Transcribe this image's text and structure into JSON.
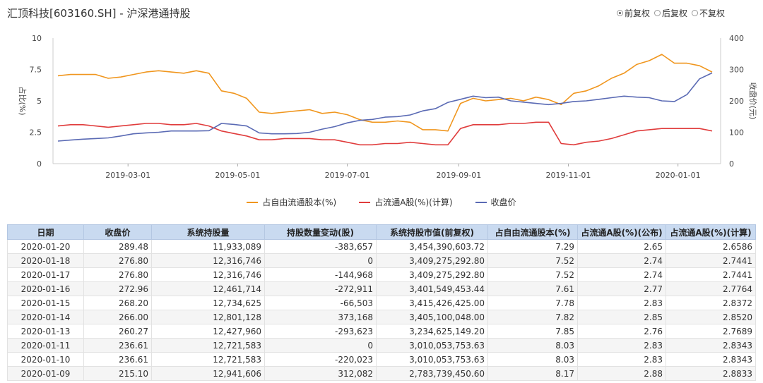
{
  "page": {
    "title": "汇顶科技[603160.SH] - 沪深港通持股"
  },
  "adjust_options": [
    {
      "label": "前复权",
      "selected": true
    },
    {
      "label": "后复权",
      "selected": false
    },
    {
      "label": "不复权",
      "selected": false
    }
  ],
  "chart_data": {
    "type": "line",
    "x_ticks": [
      "2019-03-01",
      "2019-05-01",
      "2019-07-01",
      "2019-09-01",
      "2019-11-01",
      "2020-01-01"
    ],
    "x": [
      "2019-01-21",
      "2019-01-28",
      "2019-02-04",
      "2019-02-11",
      "2019-02-18",
      "2019-02-25",
      "2019-03-04",
      "2019-03-11",
      "2019-03-18",
      "2019-03-25",
      "2019-04-01",
      "2019-04-08",
      "2019-04-15",
      "2019-04-22",
      "2019-04-29",
      "2019-05-06",
      "2019-05-13",
      "2019-05-20",
      "2019-05-27",
      "2019-06-03",
      "2019-06-10",
      "2019-06-17",
      "2019-06-24",
      "2019-07-01",
      "2019-07-08",
      "2019-07-15",
      "2019-07-22",
      "2019-07-29",
      "2019-08-05",
      "2019-08-12",
      "2019-08-19",
      "2019-08-26",
      "2019-09-02",
      "2019-09-09",
      "2019-09-16",
      "2019-09-23",
      "2019-09-30",
      "2019-10-07",
      "2019-10-14",
      "2019-10-21",
      "2019-10-28",
      "2019-11-04",
      "2019-11-11",
      "2019-11-18",
      "2019-11-25",
      "2019-12-02",
      "2019-12-09",
      "2019-12-16",
      "2019-12-23",
      "2019-12-30",
      "2020-01-06",
      "2020-01-13",
      "2020-01-20"
    ],
    "y_left": {
      "label": "占比(%)",
      "ticks": [
        0,
        2.5,
        5,
        7.5,
        10
      ],
      "range": [
        0,
        10
      ]
    },
    "y_right": {
      "label": "收盘价(元)",
      "ticks": [
        0,
        100,
        200,
        300,
        400
      ],
      "range": [
        0,
        400
      ]
    },
    "series": [
      {
        "name": "占自由流通股本(%)",
        "color": "#f0961e",
        "axis": "left",
        "values": [
          7.0,
          7.1,
          7.1,
          7.1,
          6.8,
          6.9,
          7.1,
          7.3,
          7.4,
          7.3,
          7.2,
          7.4,
          7.2,
          5.8,
          5.6,
          5.2,
          4.1,
          4.0,
          4.1,
          4.2,
          4.3,
          4.0,
          4.1,
          3.9,
          3.5,
          3.3,
          3.3,
          3.4,
          3.3,
          2.7,
          2.7,
          2.6,
          4.8,
          5.2,
          5.0,
          5.1,
          5.2,
          5.0,
          5.3,
          5.1,
          4.7,
          5.6,
          5.8,
          6.2,
          6.8,
          7.2,
          7.9,
          8.2,
          8.7,
          8.0,
          8.0,
          7.8,
          7.3
        ]
      },
      {
        "name": "占流通A股(%)(计算)",
        "color": "#e03c3c",
        "axis": "left",
        "values": [
          3.0,
          3.1,
          3.1,
          3.0,
          2.9,
          3.0,
          3.1,
          3.2,
          3.2,
          3.1,
          3.1,
          3.2,
          3.0,
          2.6,
          2.4,
          2.2,
          1.9,
          1.9,
          2.0,
          2.0,
          2.0,
          1.9,
          1.9,
          1.7,
          1.5,
          1.5,
          1.6,
          1.6,
          1.7,
          1.6,
          1.5,
          1.5,
          2.8,
          3.1,
          3.1,
          3.1,
          3.2,
          3.2,
          3.3,
          3.3,
          1.6,
          1.5,
          1.7,
          1.8,
          2.0,
          2.3,
          2.6,
          2.7,
          2.8,
          2.8,
          2.8,
          2.8,
          2.6
        ]
      },
      {
        "name": "收盘价",
        "color": "#5a6ab4",
        "axis": "right",
        "values": [
          72,
          75,
          78,
          80,
          82,
          88,
          95,
          98,
          100,
          104,
          104,
          104,
          105,
          128,
          125,
          120,
          98,
          95,
          95,
          96,
          100,
          110,
          118,
          130,
          138,
          141,
          148,
          150,
          155,
          168,
          175,
          195,
          205,
          215,
          210,
          212,
          200,
          196,
          192,
          188,
          192,
          198,
          200,
          205,
          210,
          215,
          212,
          210,
          200,
          198,
          220,
          270,
          289
        ]
      }
    ]
  },
  "table": {
    "headers": [
      "日期",
      "收盘价",
      "系统持股量",
      "持股数量变动(股)",
      "系统持股市值(前复权)",
      "占自由流通股本(%)",
      "占流通A股(%)(公布)",
      "占流通A股(%)(计算)"
    ],
    "rows": [
      [
        "2020-01-20",
        "289.48",
        "11,933,089",
        "-383,657",
        "3,454,390,603.72",
        "7.29",
        "2.65",
        "2.6586"
      ],
      [
        "2020-01-18",
        "276.80",
        "12,316,746",
        "0",
        "3,409,275,292.80",
        "7.52",
        "2.74",
        "2.7441"
      ],
      [
        "2020-01-17",
        "276.80",
        "12,316,746",
        "-144,968",
        "3,409,275,292.80",
        "7.52",
        "2.74",
        "2.7441"
      ],
      [
        "2020-01-16",
        "272.96",
        "12,461,714",
        "-272,911",
        "3,401,549,453.44",
        "7.61",
        "2.77",
        "2.7764"
      ],
      [
        "2020-01-15",
        "268.20",
        "12,734,625",
        "-66,503",
        "3,415,426,425.00",
        "7.78",
        "2.83",
        "2.8372"
      ],
      [
        "2020-01-14",
        "266.00",
        "12,801,128",
        "373,168",
        "3,405,100,048.00",
        "7.82",
        "2.85",
        "2.8520"
      ],
      [
        "2020-01-13",
        "260.27",
        "12,427,960",
        "-293,623",
        "3,234,625,149.20",
        "7.85",
        "2.76",
        "2.7689"
      ],
      [
        "2020-01-11",
        "236.61",
        "12,721,583",
        "0",
        "3,010,053,753.63",
        "8.03",
        "2.83",
        "2.8343"
      ],
      [
        "2020-01-10",
        "236.61",
        "12,721,583",
        "-220,023",
        "3,010,053,753.63",
        "8.03",
        "2.83",
        "2.8343"
      ],
      [
        "2020-01-09",
        "215.10",
        "12,941,606",
        "312,082",
        "2,783,739,450.60",
        "8.17",
        "2.88",
        "2.8833"
      ]
    ]
  }
}
